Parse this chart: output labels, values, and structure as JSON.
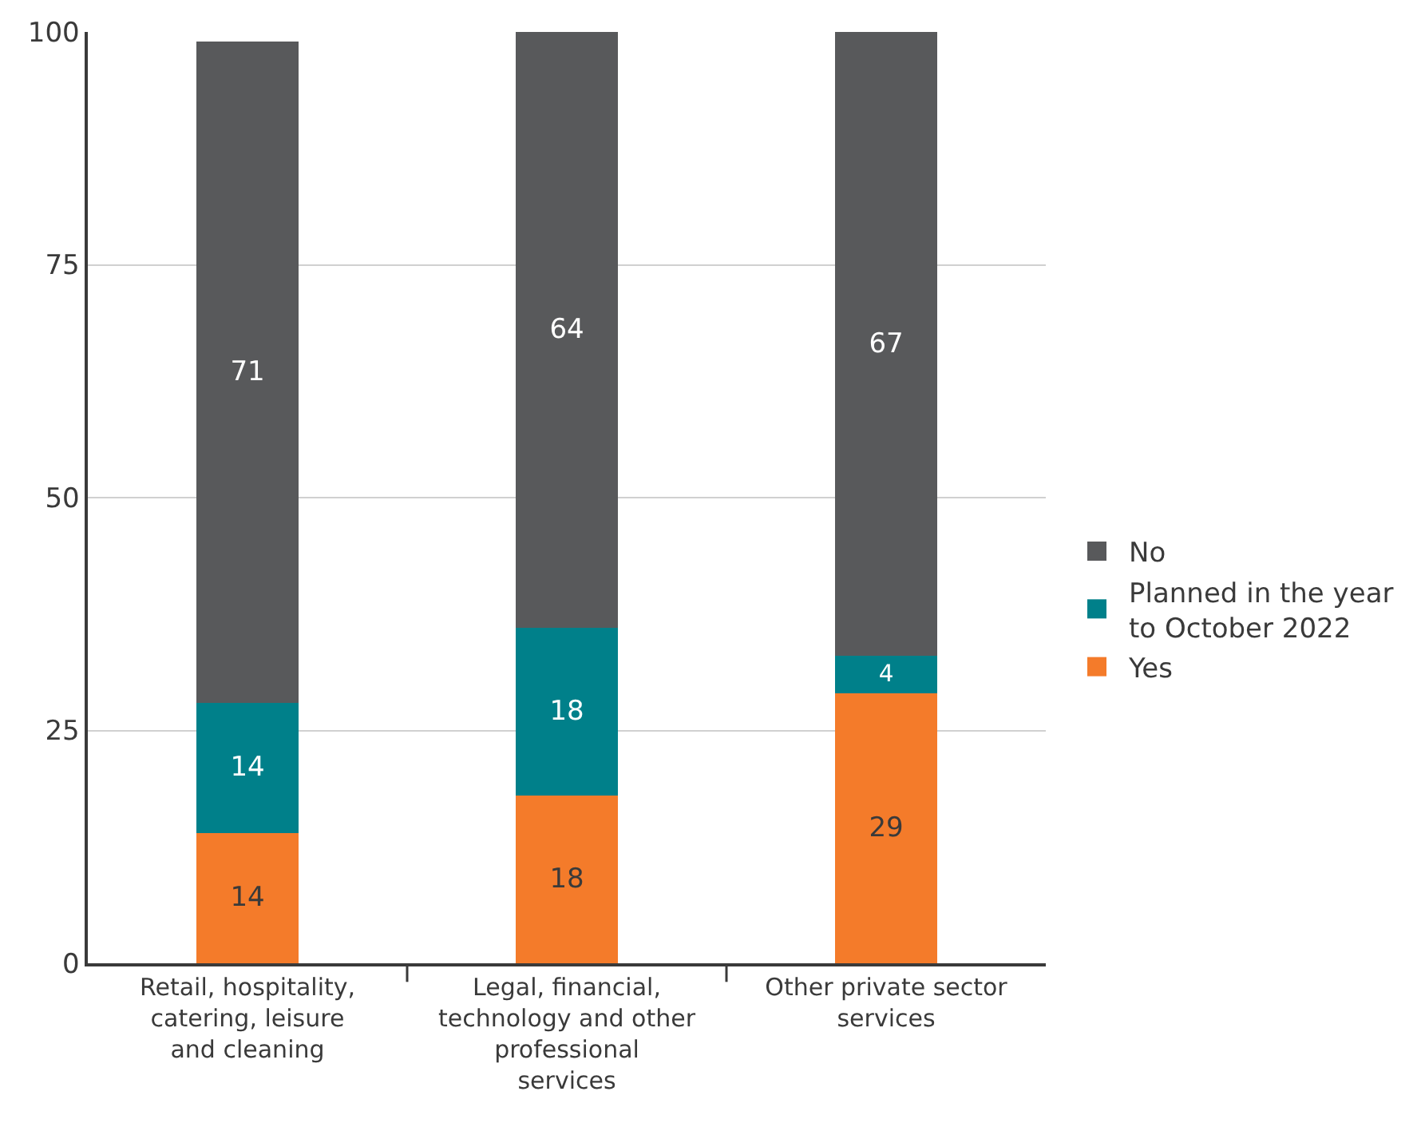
{
  "chart_data": {
    "type": "bar",
    "stacked": true,
    "data_labels": true,
    "grid": "y",
    "legend": "right",
    "categories": [
      "Retail, hospitality, catering, leisure and cleaning",
      "Legal, financial, technology and other professional services",
      "Other private sector services"
    ],
    "series": [
      {
        "name": "Yes",
        "color": "#f47b2a",
        "values": [
          14,
          18,
          29
        ]
      },
      {
        "name": "Planned in the year to October 2022",
        "color": "#00808a",
        "values": [
          14,
          18,
          4
        ]
      },
      {
        "name": "No",
        "color": "#58595b",
        "values": [
          71,
          64,
          67
        ]
      }
    ],
    "ylim": [
      0,
      100
    ],
    "yticks": [
      0,
      25,
      50,
      75,
      100
    ]
  }
}
